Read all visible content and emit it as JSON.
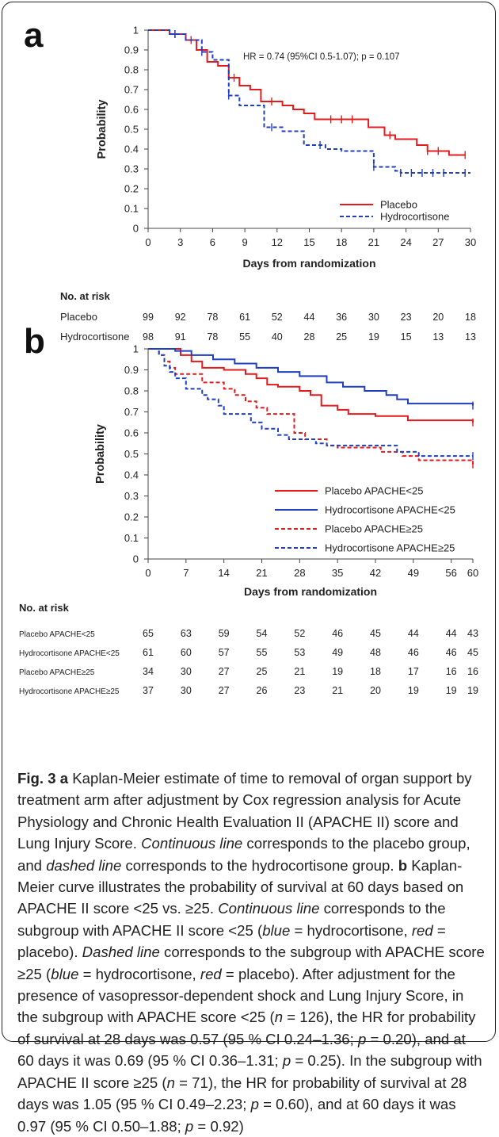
{
  "chart_data": [
    {
      "panel": "a",
      "type": "line",
      "annotation": "HR = 0.74 (95%CI 0.5-1.07); p = 0.107",
      "xlabel": "Days from randomization",
      "ylabel": "Probability",
      "xlim": [
        0,
        30
      ],
      "ylim": [
        0,
        1
      ],
      "xticks": [
        "0",
        "3",
        "6",
        "9",
        "12",
        "15",
        "18",
        "21",
        "24",
        "27",
        "30"
      ],
      "yticks": [
        "0",
        "0.1",
        "0.2",
        "0.3",
        "0.4",
        "0.5",
        "0.6",
        "0.7",
        "0.8",
        "0.9",
        "1"
      ],
      "legend_position": "bottom-right",
      "series": [
        {
          "name": "Placebo",
          "color": "#e41a1c",
          "dashed": false,
          "x": [
            0,
            2,
            3.5,
            4.5,
            5.5,
            6.5,
            7.5,
            8.5,
            9.5,
            10.5,
            12.5,
            13.5,
            14.5,
            15.5,
            16.5,
            20.5,
            22,
            23,
            25,
            26,
            28,
            29.5
          ],
          "y": [
            1,
            0.98,
            0.95,
            0.9,
            0.84,
            0.82,
            0.76,
            0.72,
            0.7,
            0.64,
            0.62,
            0.6,
            0.58,
            0.55,
            0.55,
            0.51,
            0.47,
            0.45,
            0.42,
            0.39,
            0.37,
            0.37
          ],
          "censor_x": [
            2.5,
            4,
            8,
            11.5,
            17,
            18,
            19,
            22.5,
            26,
            27,
            29.5
          ]
        },
        {
          "name": "Hydrocortisone",
          "color": "#1f3fbf",
          "dashed": true,
          "x": [
            0,
            2,
            3.5,
            5,
            6,
            7.5,
            8.5,
            10,
            10.8,
            12.5,
            14.5,
            16.5,
            18,
            21,
            23,
            23.5,
            24,
            30
          ],
          "y": [
            1,
            0.98,
            0.95,
            0.89,
            0.85,
            0.67,
            0.62,
            0.62,
            0.51,
            0.49,
            0.42,
            0.4,
            0.39,
            0.31,
            0.29,
            0.28,
            0.28,
            0.28
          ],
          "censor_x": [
            2.5,
            5,
            7.5,
            11.5,
            16,
            21,
            23.5,
            24.5,
            25.5,
            26.5,
            27.5,
            29.5
          ]
        }
      ],
      "at_risk": {
        "header": "No. at risk",
        "rows": [
          {
            "label": "Placebo",
            "values": [
              "99",
              "92",
              "78",
              "61",
              "52",
              "44",
              "36",
              "30",
              "23",
              "20",
              "18"
            ]
          },
          {
            "label": "Hydrocortisone",
            "values": [
              "98",
              "91",
              "78",
              "55",
              "40",
              "28",
              "25",
              "19",
              "15",
              "13",
              "13"
            ]
          }
        ]
      }
    },
    {
      "panel": "b",
      "type": "line",
      "xlabel": "Days from randomization",
      "ylabel": "Probability",
      "xlim": [
        0,
        60
      ],
      "ylim": [
        0,
        1
      ],
      "xticks": [
        "0",
        "7",
        "14",
        "21",
        "28",
        "35",
        "42",
        "49",
        "56",
        "60"
      ],
      "yticks": [
        "0",
        "0.1",
        "0.2",
        "0.3",
        "0.4",
        "0.5",
        "0.6",
        "0.7",
        "0.8",
        "0.9",
        "1"
      ],
      "legend_position": "bottom-right",
      "series": [
        {
          "name": "Placebo APACHE<25",
          "color": "#e41a1c",
          "dashed": false,
          "x": [
            0,
            6,
            8,
            10,
            14,
            18,
            20,
            22,
            24,
            28,
            30,
            32,
            35,
            37,
            42,
            45,
            48,
            60
          ],
          "y": [
            1,
            0.97,
            0.94,
            0.91,
            0.9,
            0.88,
            0.86,
            0.83,
            0.82,
            0.8,
            0.78,
            0.73,
            0.71,
            0.69,
            0.68,
            0.68,
            0.66,
            0.65
          ],
          "censor_x": [
            60
          ]
        },
        {
          "name": "Hydrocortisone APACHE<25",
          "color": "#1f3fbf",
          "dashed": false,
          "x": [
            0,
            5,
            8,
            12,
            16,
            20,
            24,
            28,
            33,
            36,
            40,
            44,
            46,
            48,
            52,
            60
          ],
          "y": [
            1,
            0.99,
            0.97,
            0.95,
            0.93,
            0.91,
            0.89,
            0.87,
            0.84,
            0.82,
            0.8,
            0.78,
            0.76,
            0.74,
            0.74,
            0.73
          ],
          "censor_x": [
            60
          ]
        },
        {
          "name": "Placebo APACHE≥25",
          "color": "#e41a1c",
          "dashed": true,
          "x": [
            0,
            2,
            3,
            4,
            5,
            7,
            10,
            14,
            16,
            18,
            20,
            22,
            27,
            29,
            33,
            35,
            43,
            47,
            50,
            60
          ],
          "y": [
            1,
            0.97,
            0.94,
            0.91,
            0.88,
            0.88,
            0.84,
            0.81,
            0.78,
            0.75,
            0.72,
            0.69,
            0.6,
            0.57,
            0.54,
            0.53,
            0.51,
            0.49,
            0.47,
            0.45
          ],
          "censor_x": [
            60
          ]
        },
        {
          "name": "Hydrocortisone APACHE≥25",
          "color": "#1f3fbf",
          "dashed": true,
          "x": [
            0,
            2,
            3,
            4,
            5,
            7,
            10,
            11,
            13,
            14,
            19,
            21,
            24,
            26,
            29,
            31,
            33,
            37,
            42,
            46,
            50,
            60
          ],
          "y": [
            1,
            0.97,
            0.92,
            0.89,
            0.86,
            0.81,
            0.78,
            0.76,
            0.73,
            0.69,
            0.65,
            0.62,
            0.59,
            0.57,
            0.57,
            0.55,
            0.54,
            0.54,
            0.54,
            0.51,
            0.49,
            0.49
          ],
          "censor_x": [
            60
          ]
        }
      ],
      "at_risk": {
        "header": "No. at risk",
        "rows": [
          {
            "label": "Placebo APACHE<25",
            "values": [
              "65",
              "63",
              "59",
              "54",
              "52",
              "46",
              "45",
              "44",
              "44",
              "43"
            ]
          },
          {
            "label": "Hydrocortisone APACHE<25",
            "values": [
              "61",
              "60",
              "57",
              "55",
              "53",
              "49",
              "48",
              "46",
              "46",
              "45"
            ]
          },
          {
            "label": "Placebo APACHE≥25",
            "values": [
              "34",
              "30",
              "27",
              "25",
              "21",
              "19",
              "18",
              "17",
              "16",
              "16"
            ]
          },
          {
            "label": "Hydrocortisone APACHE≥25",
            "values": [
              "37",
              "30",
              "27",
              "26",
              "23",
              "21",
              "20",
              "19",
              "19",
              "19"
            ]
          }
        ]
      }
    }
  ],
  "panel_letters": {
    "a": "a",
    "b": "b"
  },
  "caption": {
    "fig_label": "Fig. 3",
    "a_label": "a",
    "text_a1": " Kaplan-Meier estimate of time to removal of organ support by treatment arm after adjustment by Cox regression analysis for Acute Physiology and Chronic Health Evaluation II (APACHE II) score and Lung Injury Score. ",
    "continuous_line": "Continuous line",
    "text_a2": " corresponds to the placebo group, and ",
    "dashed_line": "dashed line",
    "text_a3": " corresponds to the hydrocortisone group. ",
    "b_label": "b",
    "text_b1": " Kaplan-Meier curve illustrates the probability of survival at 60 days based on APACHE II score <25 vs. ≥25. ",
    "continuous_line_2": "Continuous line",
    "text_b2": " corresponds to the subgroup with APACHE II score <25 (",
    "blue_1": "blue",
    "text_b3": " = hydrocortisone, ",
    "red_1": "red",
    "text_b4": " = placebo). ",
    "dashed_line_2": "Dashed line",
    "text_b5": " corresponds to the subgroup with APACHE score ≥25 (",
    "blue_2": "blue",
    "text_b6": " = hydrocortisone, ",
    "red_2": "red",
    "text_b7": " = placebo). After adjustment for the presence of vasopressor-dependent shock and Lung Injury Score, in the subgroup with APACHE score <25 (",
    "n_1": "n",
    "text_b8": " = 126), the HR for probability of survival at 28 days was 0.57 (95 % CI 0.24–1.36; ",
    "p_1": "p",
    "text_b9": " = 0.20), and at 60 days it was 0.69 (95 % CI 0.36–1.31; ",
    "p_2": "p",
    "text_b10": " = 0.25). In the subgroup with APACHE II score ≥25 (",
    "n_2": "n",
    "text_b11": " = 71), the HR for probability of survival at 28 days was 1.05 (95 % CI 0.49–2.23; ",
    "p_3": "p",
    "text_b12": " = 0.60), and at 60 days it was 0.97 (95 % CI 0.50–1.88; ",
    "p_4": "p",
    "text_b13": " = 0.92)"
  }
}
